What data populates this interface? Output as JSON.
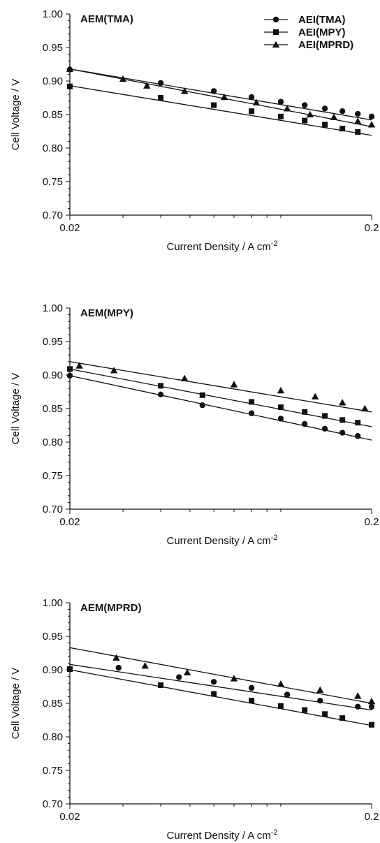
{
  "chart_data": [
    {
      "type": "line",
      "title": "AEM(TMA)",
      "xlabel": "Current Density / A cm",
      "xlabel_sup": "-2",
      "ylabel": "Cell  Voltage / V",
      "xscale": "log",
      "xlim": [
        0.02,
        0.2
      ],
      "ylim": [
        0.7,
        1.0
      ],
      "x_ticklabels": [
        "0.02",
        "0.2"
      ],
      "y_ticklabels": [
        "0.70",
        "0.75",
        "0.80",
        "0.85",
        "0.90",
        "0.95",
        "1.00"
      ],
      "legend_position": "top-right",
      "series": [
        {
          "name": "AEI(TMA)",
          "marker": "circle",
          "x": [
            0.02,
            0.04,
            0.06,
            0.08,
            0.1,
            0.12,
            0.14,
            0.16,
            0.18,
            0.2
          ],
          "y": [
            0.917,
            0.897,
            0.885,
            0.876,
            0.869,
            0.864,
            0.859,
            0.855,
            0.851,
            0.847
          ],
          "fit": [
            [
              0.02,
              0.918
            ],
            [
              0.2,
              0.842
            ]
          ]
        },
        {
          "name": "AEI(MPY)",
          "marker": "square",
          "x": [
            0.02,
            0.04,
            0.06,
            0.08,
            0.1,
            0.12,
            0.14,
            0.16,
            0.18
          ],
          "y": [
            0.892,
            0.875,
            0.864,
            0.855,
            0.847,
            0.841,
            0.835,
            0.829,
            0.824
          ],
          "fit": [
            [
              0.02,
              0.893
            ],
            [
              0.2,
              0.819
            ]
          ]
        },
        {
          "name": "AEI(MPRD)",
          "marker": "triangle",
          "x": [
            0.02,
            0.03,
            0.036,
            0.048,
            0.065,
            0.083,
            0.105,
            0.125,
            0.15,
            0.18,
            0.2
          ],
          "y": [
            0.918,
            0.903,
            0.893,
            0.885,
            0.876,
            0.868,
            0.859,
            0.85,
            0.846,
            0.84,
            0.835
          ],
          "fit": [
            [
              0.02,
              0.918
            ],
            [
              0.2,
              0.832
            ]
          ]
        }
      ]
    },
    {
      "type": "line",
      "title": "AEM(MPY)",
      "xlabel": "Current Density / A cm",
      "xlabel_sup": "-2",
      "ylabel": "Cell  Voltage / V",
      "xscale": "log",
      "xlim": [
        0.02,
        0.2
      ],
      "ylim": [
        0.7,
        1.0
      ],
      "x_ticklabels": [
        "0.02",
        "0.2"
      ],
      "y_ticklabels": [
        "0.70",
        "0.75",
        "0.80",
        "0.85",
        "0.90",
        "0.95",
        "1.00"
      ],
      "series": [
        {
          "marker": "triangle",
          "x": [
            0.0215,
            0.028,
            0.048,
            0.07,
            0.1,
            0.13,
            0.16,
            0.19
          ],
          "y": [
            0.914,
            0.907,
            0.895,
            0.886,
            0.877,
            0.868,
            0.859,
            0.85
          ],
          "fit": [
            [
              0.02,
              0.92
            ],
            [
              0.2,
              0.845
            ]
          ]
        },
        {
          "marker": "square",
          "x": [
            0.02,
            0.04,
            0.055,
            0.08,
            0.1,
            0.12,
            0.14,
            0.16,
            0.18
          ],
          "y": [
            0.909,
            0.884,
            0.87,
            0.86,
            0.852,
            0.845,
            0.839,
            0.833,
            0.829
          ],
          "fit": [
            [
              0.02,
              0.909
            ],
            [
              0.2,
              0.823
            ]
          ]
        },
        {
          "marker": "circle",
          "x": [
            0.02,
            0.04,
            0.055,
            0.08,
            0.1,
            0.12,
            0.14,
            0.16,
            0.18
          ],
          "y": [
            0.899,
            0.871,
            0.855,
            0.843,
            0.835,
            0.827,
            0.82,
            0.814,
            0.809
          ],
          "fit": [
            [
              0.02,
              0.899
            ],
            [
              0.2,
              0.803
            ]
          ]
        }
      ]
    },
    {
      "type": "line",
      "title": "AEM(MPRD)",
      "xlabel": "Current Density / A cm",
      "xlabel_sup": "-2",
      "ylabel": "Cell  Voltage / V",
      "xscale": "log",
      "xlim": [
        0.02,
        0.2
      ],
      "ylim": [
        0.7,
        1.0
      ],
      "x_ticklabels": [
        "0.02",
        "0.2"
      ],
      "y_ticklabels": [
        "0.70",
        "0.75",
        "0.80",
        "0.85",
        "0.90",
        "0.95",
        "1.00"
      ],
      "series": [
        {
          "marker": "triangle",
          "x": [
            0.0285,
            0.0355,
            0.049,
            0.07,
            0.1,
            0.135,
            0.18,
            0.2
          ],
          "y": [
            0.918,
            0.906,
            0.896,
            0.887,
            0.879,
            0.87,
            0.861,
            0.853
          ],
          "fit": [
            [
              0.02,
              0.933
            ],
            [
              0.2,
              0.85
            ]
          ]
        },
        {
          "marker": "circle",
          "x": [
            0.029,
            0.046,
            0.06,
            0.08,
            0.105,
            0.135,
            0.18,
            0.2
          ],
          "y": [
            0.903,
            0.889,
            0.882,
            0.873,
            0.863,
            0.854,
            0.845,
            0.845
          ],
          "fit": [
            [
              0.02,
              0.908
            ],
            [
              0.2,
              0.84
            ]
          ]
        },
        {
          "marker": "square",
          "x": [
            0.02,
            0.04,
            0.06,
            0.08,
            0.1,
            0.12,
            0.14,
            0.16,
            0.2
          ],
          "y": [
            0.901,
            0.877,
            0.864,
            0.854,
            0.846,
            0.84,
            0.834,
            0.828,
            0.818
          ],
          "fit": [
            [
              0.02,
              0.9
            ],
            [
              0.2,
              0.817
            ]
          ]
        }
      ]
    }
  ]
}
